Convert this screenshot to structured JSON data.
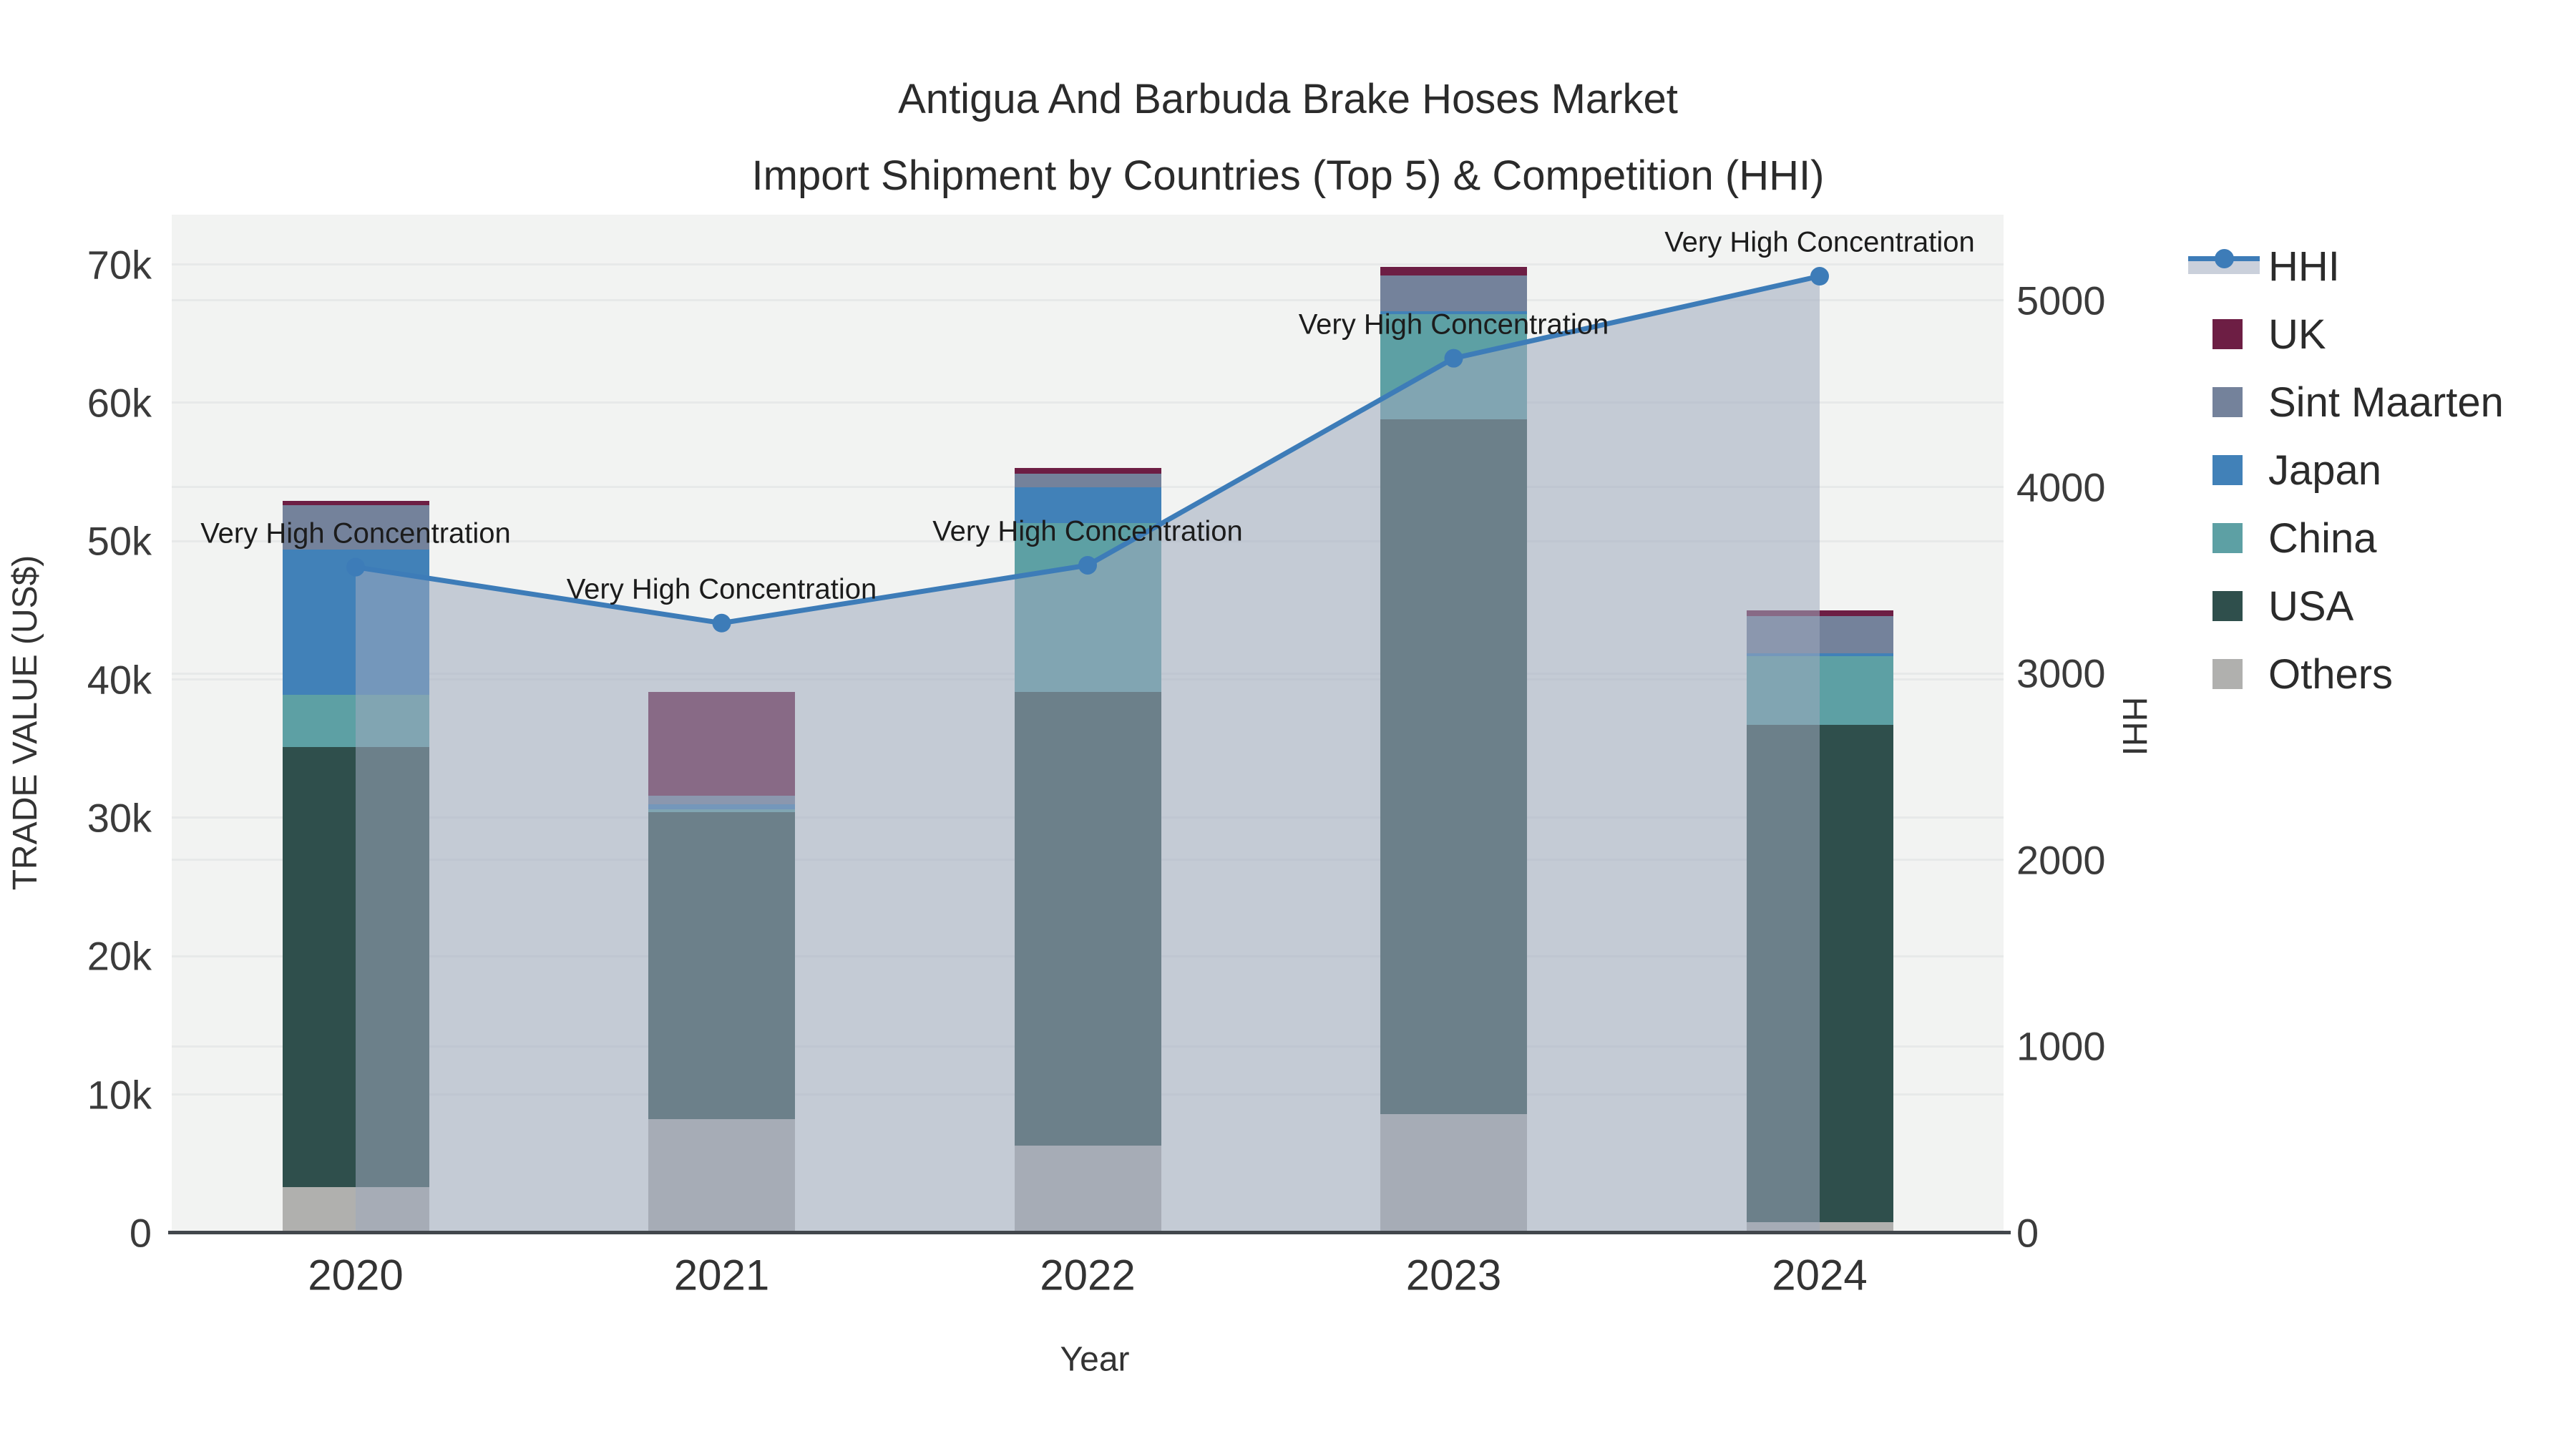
{
  "title": {
    "line1": "Antigua And Barbuda Brake Hoses Market",
    "line2": "Import Shipment by Countries (Top 5) & Competition (HHI)"
  },
  "axes": {
    "x": {
      "title": "Year"
    },
    "y_left": {
      "title": "TRADE VALUE (US$)"
    },
    "y_right": {
      "title": "HHI"
    }
  },
  "colors": {
    "hhi_line": "#3d7cb8",
    "hhi_fill": "rgba(158,170,189,0.55)",
    "plot_background": "#f2f3f2",
    "gridline": "#e7e9e9"
  },
  "chart_data": {
    "type": "bar+line",
    "title": "Antigua And Barbuda Brake Hoses Market — Import Shipment by Countries (Top 5) & Competition (HHI)",
    "categories": [
      "2020",
      "2021",
      "2022",
      "2023",
      "2024"
    ],
    "x_axis_label": "Year",
    "bar_axis": {
      "label": "TRADE VALUE (US$)",
      "range": [
        0,
        73600
      ],
      "tick_values": [
        0,
        10000,
        20000,
        30000,
        40000,
        50000,
        60000,
        70000
      ],
      "tick_labels": [
        "0",
        "10k",
        "20k",
        "30k",
        "40k",
        "50k",
        "60k",
        "70k"
      ]
    },
    "line_axis": {
      "label": "HHI",
      "range": [
        0,
        5460
      ],
      "tick_values": [
        0,
        1000,
        2000,
        3000,
        4000,
        5000
      ],
      "tick_labels": [
        "0",
        "1000",
        "2000",
        "3000",
        "4000",
        "5000"
      ]
    },
    "stack_order_bottom_to_top": [
      "Others",
      "USA",
      "China",
      "Japan",
      "Sint Maarten",
      "UK"
    ],
    "bar_series": [
      {
        "name": "Others",
        "color": "#b0b0ae",
        "values": [
          3300,
          8200,
          6300,
          8600,
          800
        ]
      },
      {
        "name": "USA",
        "color": "#2f4f4c",
        "values": [
          31800,
          22200,
          32800,
          50200,
          35900
        ]
      },
      {
        "name": "China",
        "color": "#5da0a4",
        "values": [
          3800,
          200,
          12200,
          7600,
          5000
        ]
      },
      {
        "name": "Japan",
        "color": "#4181b8",
        "values": [
          10500,
          400,
          2600,
          200,
          200
        ]
      },
      {
        "name": "Sint Maarten",
        "color": "#74829b",
        "values": [
          3200,
          600,
          1000,
          2600,
          2700
        ]
      },
      {
        "name": "UK",
        "color": "#6d1e44",
        "values": [
          300,
          7500,
          400,
          600,
          400
        ]
      }
    ],
    "bar_totals": [
      52900,
      39100,
      55300,
      69800,
      45000
    ],
    "line_series": {
      "name": "HHI",
      "yaxis": "right",
      "values": [
        3570,
        3270,
        3580,
        4690,
        5130
      ]
    },
    "point_annotation_text": "Very High Concentration",
    "legend_order": [
      "HHI",
      "UK",
      "Sint Maarten",
      "Japan",
      "China",
      "USA",
      "Others"
    ],
    "legend_position": "right",
    "grid": true
  }
}
